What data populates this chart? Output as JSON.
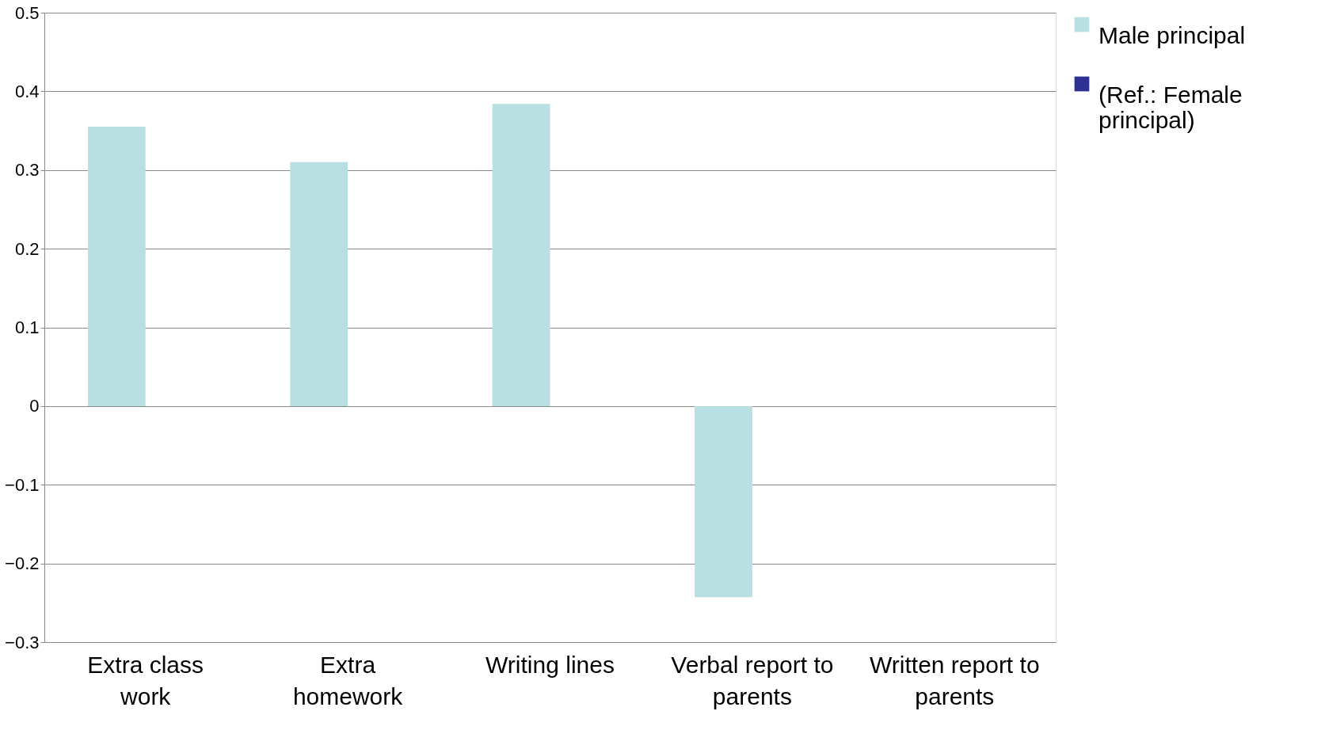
{
  "chart_data": {
    "type": "bar",
    "categories": [
      "Extra class work",
      "Extra homework",
      "Writing lines",
      "Verbal report to parents",
      "Written report to parents"
    ],
    "series": [
      {
        "name": "Male principal",
        "color": "#b8e0e2",
        "values": [
          0.355,
          0.31,
          0.384,
          -0.243,
          null
        ]
      },
      {
        "name": "(Ref.: Female principal)",
        "color": "#2e3192",
        "values": [
          0,
          0,
          0,
          0,
          0
        ]
      }
    ],
    "ylim": [
      -0.3,
      0.5
    ],
    "yticks": [
      -0.3,
      -0.2,
      -0.1,
      0,
      0.1,
      0.2,
      0.3,
      0.4,
      0.5
    ],
    "grid": "y",
    "legend": "right"
  }
}
